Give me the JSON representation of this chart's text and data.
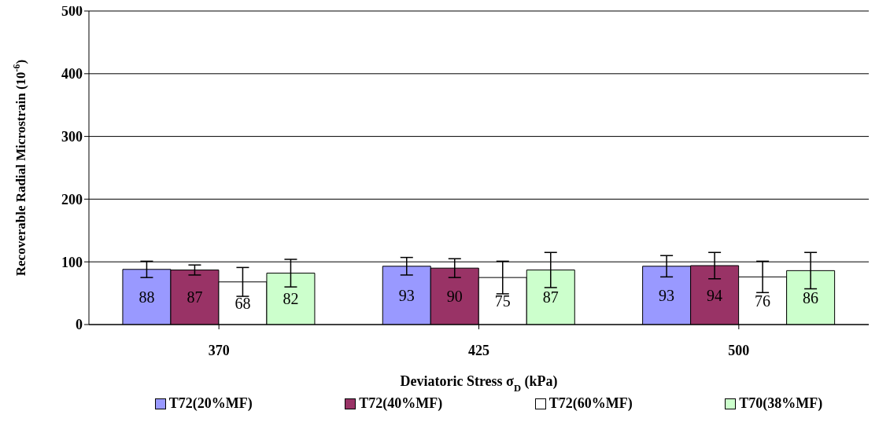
{
  "chart_data": {
    "type": "bar",
    "categories": [
      "370",
      "425",
      "500"
    ],
    "series": [
      {
        "name": "T72(20%MF)",
        "color": "#9999ff",
        "values": [
          88,
          93,
          93
        ],
        "errors": [
          13,
          14,
          17
        ]
      },
      {
        "name": "T72(40%MF)",
        "color": "#993366",
        "values": [
          87,
          90,
          94
        ],
        "errors": [
          8,
          15,
          21
        ]
      },
      {
        "name": "T72(60%MF)",
        "color": "#ffffff",
        "values": [
          68,
          75,
          76
        ],
        "errors": [
          23,
          26,
          25
        ]
      },
      {
        "name": "T70(38%MF)",
        "color": "#ccffcc",
        "values": [
          82,
          87,
          86
        ],
        "errors": [
          22,
          28,
          29
        ]
      }
    ],
    "ylim": [
      0,
      500
    ],
    "yticks": [
      0,
      100,
      200,
      300,
      400,
      500
    ],
    "grid": "y",
    "legend": "bottom",
    "data_labels": true,
    "xlabel": "Deviatoric Stress σ$_{D}$ (kPa)",
    "ylabel": "Recoverable Radial Microstrain (10$^{-6}$)"
  }
}
